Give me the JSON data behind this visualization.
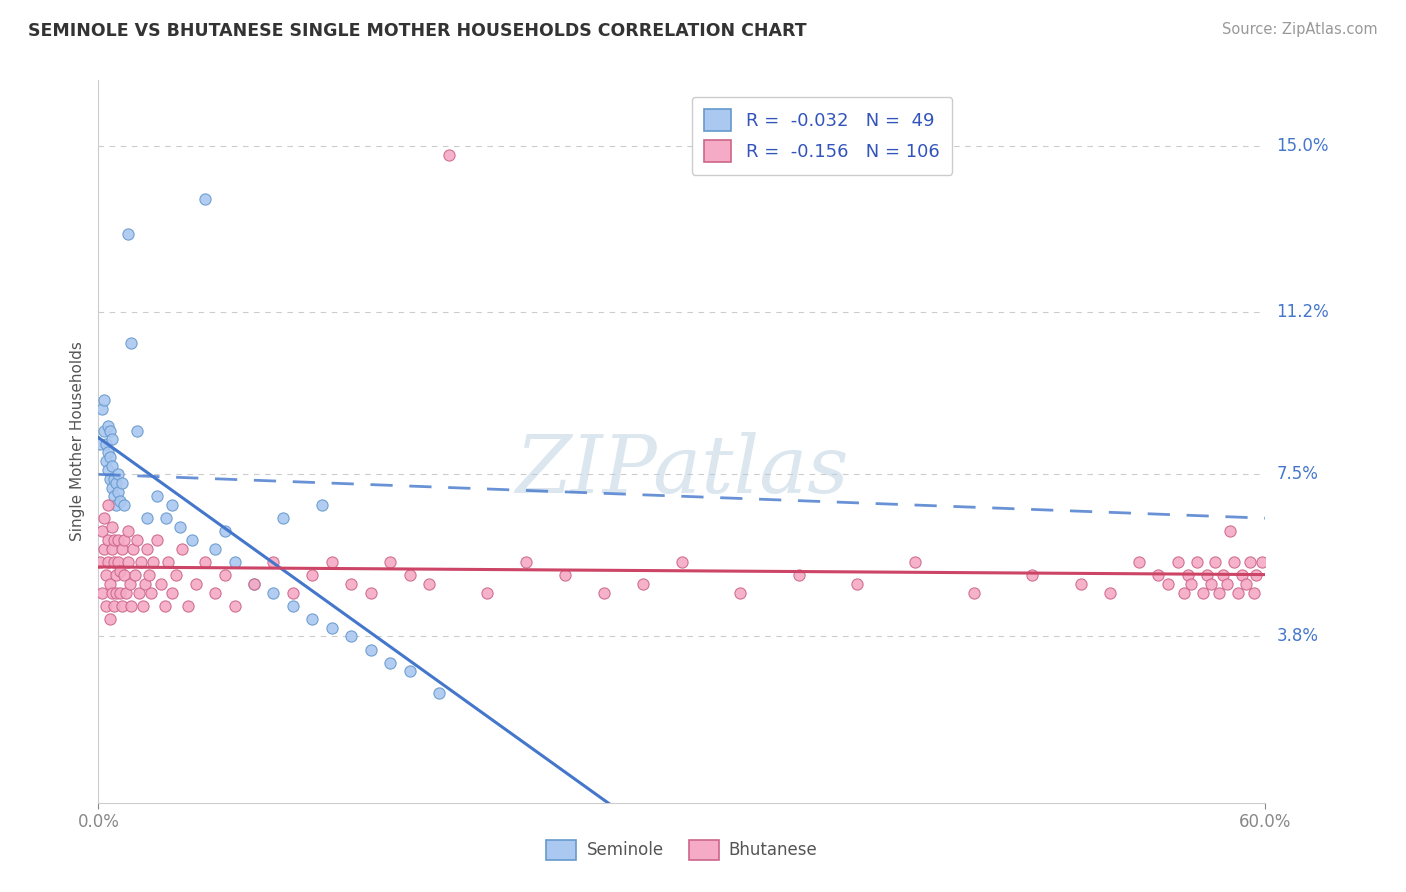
{
  "title": "SEMINOLE VS BHUTANESE SINGLE MOTHER HOUSEHOLDS CORRELATION CHART",
  "source": "Source: ZipAtlas.com",
  "ylabel": "Single Mother Households",
  "x_min": 0.0,
  "x_max": 0.6,
  "y_min": 0.0,
  "y_max": 0.165,
  "yticks": [
    0.038,
    0.075,
    0.112,
    0.15
  ],
  "ytick_labels": [
    "3.8%",
    "7.5%",
    "11.2%",
    "15.0%"
  ],
  "grid_color": "#cccccc",
  "background_color": "#ffffff",
  "seminole_color": "#aac8f0",
  "bhutanese_color": "#f5aac5",
  "seminole_edge": "#6699cc",
  "bhutanese_edge": "#cc6688",
  "trend_seminole_color": "#4477cc",
  "trend_bhutanese_color": "#cc4466",
  "R_seminole": "-0.032",
  "N_seminole": "49",
  "R_bhutanese": "-0.156",
  "N_bhutanese": "106",
  "watermark": "ZIPatlas",
  "seminole_x": [
    0.001,
    0.002,
    0.003,
    0.003,
    0.004,
    0.004,
    0.005,
    0.005,
    0.005,
    0.006,
    0.006,
    0.006,
    0.007,
    0.007,
    0.007,
    0.008,
    0.008,
    0.009,
    0.009,
    0.01,
    0.01,
    0.011,
    0.012,
    0.013,
    0.015,
    0.017,
    0.02,
    0.025,
    0.03,
    0.035,
    0.038,
    0.042,
    0.048,
    0.055,
    0.06,
    0.065,
    0.07,
    0.08,
    0.09,
    0.095,
    0.1,
    0.11,
    0.115,
    0.12,
    0.13,
    0.14,
    0.15,
    0.16,
    0.175
  ],
  "seminole_y": [
    0.082,
    0.09,
    0.085,
    0.092,
    0.078,
    0.082,
    0.076,
    0.08,
    0.086,
    0.074,
    0.079,
    0.085,
    0.072,
    0.077,
    0.083,
    0.07,
    0.074,
    0.068,
    0.073,
    0.071,
    0.075,
    0.069,
    0.073,
    0.068,
    0.13,
    0.105,
    0.085,
    0.065,
    0.07,
    0.065,
    0.068,
    0.063,
    0.06,
    0.138,
    0.058,
    0.062,
    0.055,
    0.05,
    0.048,
    0.065,
    0.045,
    0.042,
    0.068,
    0.04,
    0.038,
    0.035,
    0.032,
    0.03,
    0.025
  ],
  "bhutanese_x": [
    0.001,
    0.002,
    0.002,
    0.003,
    0.003,
    0.004,
    0.004,
    0.005,
    0.005,
    0.005,
    0.006,
    0.006,
    0.007,
    0.007,
    0.007,
    0.008,
    0.008,
    0.008,
    0.009,
    0.009,
    0.01,
    0.01,
    0.011,
    0.011,
    0.012,
    0.012,
    0.013,
    0.013,
    0.014,
    0.015,
    0.015,
    0.016,
    0.017,
    0.018,
    0.019,
    0.02,
    0.021,
    0.022,
    0.023,
    0.024,
    0.025,
    0.026,
    0.027,
    0.028,
    0.03,
    0.032,
    0.034,
    0.036,
    0.038,
    0.04,
    0.043,
    0.046,
    0.05,
    0.055,
    0.06,
    0.065,
    0.07,
    0.08,
    0.09,
    0.1,
    0.11,
    0.12,
    0.13,
    0.14,
    0.15,
    0.16,
    0.17,
    0.18,
    0.2,
    0.22,
    0.24,
    0.26,
    0.28,
    0.3,
    0.33,
    0.36,
    0.39,
    0.42,
    0.45,
    0.48,
    0.505,
    0.52,
    0.535,
    0.545,
    0.55,
    0.555,
    0.558,
    0.56,
    0.562,
    0.565,
    0.568,
    0.57,
    0.572,
    0.574,
    0.576,
    0.578,
    0.58,
    0.582,
    0.584,
    0.586,
    0.588,
    0.59,
    0.592,
    0.594,
    0.595,
    0.598
  ],
  "bhutanese_y": [
    0.055,
    0.062,
    0.048,
    0.058,
    0.065,
    0.052,
    0.045,
    0.06,
    0.055,
    0.068,
    0.05,
    0.042,
    0.058,
    0.063,
    0.048,
    0.055,
    0.045,
    0.06,
    0.052,
    0.048,
    0.055,
    0.06,
    0.048,
    0.053,
    0.058,
    0.045,
    0.052,
    0.06,
    0.048,
    0.055,
    0.062,
    0.05,
    0.045,
    0.058,
    0.052,
    0.06,
    0.048,
    0.055,
    0.045,
    0.05,
    0.058,
    0.052,
    0.048,
    0.055,
    0.06,
    0.05,
    0.045,
    0.055,
    0.048,
    0.052,
    0.058,
    0.045,
    0.05,
    0.055,
    0.048,
    0.052,
    0.045,
    0.05,
    0.055,
    0.048,
    0.052,
    0.055,
    0.05,
    0.048,
    0.055,
    0.052,
    0.05,
    0.148,
    0.048,
    0.055,
    0.052,
    0.048,
    0.05,
    0.055,
    0.048,
    0.052,
    0.05,
    0.055,
    0.048,
    0.052,
    0.05,
    0.048,
    0.055,
    0.052,
    0.05,
    0.055,
    0.048,
    0.052,
    0.05,
    0.055,
    0.048,
    0.052,
    0.05,
    0.055,
    0.048,
    0.052,
    0.05,
    0.062,
    0.055,
    0.048,
    0.052,
    0.05,
    0.055,
    0.048,
    0.052,
    0.055
  ]
}
